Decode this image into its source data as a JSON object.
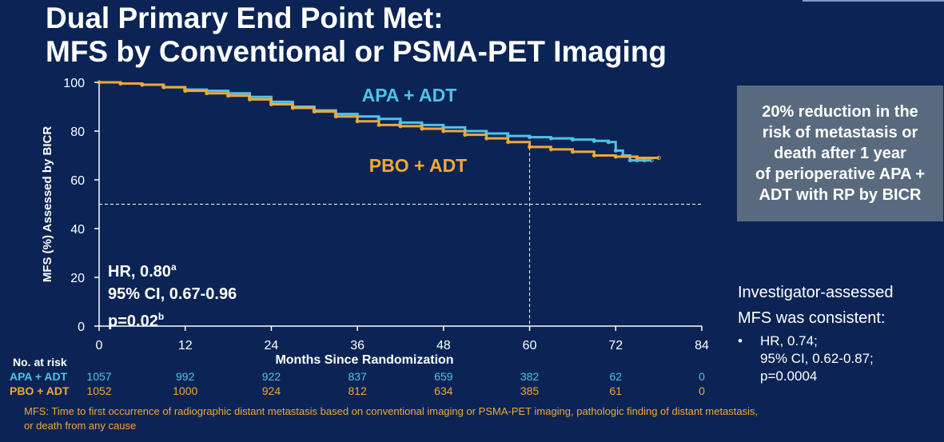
{
  "title_line1": "Dual Primary End Point Met:",
  "title_line2": "MFS by Conventional or PSMA-PET Imaging",
  "colors": {
    "background": "#0b2455",
    "apa": "#4fc3ea",
    "pbo": "#f0a838",
    "callout_bg": "#5a6a7e"
  },
  "chart_data": {
    "type": "line",
    "xlabel": "Months Since Randomization",
    "ylabel": "MFS (%) Assessed by BICR",
    "xlim": [
      0,
      84
    ],
    "ylim": [
      0,
      100
    ],
    "xticks": [
      0,
      12,
      24,
      36,
      48,
      60,
      72,
      84
    ],
    "yticks": [
      0,
      20,
      40,
      60,
      80,
      100
    ],
    "reference_lines": {
      "median_y": 50,
      "vertical_x": 60
    },
    "series": [
      {
        "name": "APA + ADT",
        "x": [
          0,
          3,
          6,
          9,
          12,
          15,
          18,
          21,
          24,
          27,
          30,
          33,
          36,
          39,
          42,
          45,
          48,
          51,
          54,
          57,
          60,
          63,
          66,
          69,
          71,
          72,
          73,
          74,
          75,
          76,
          77
        ],
        "values": [
          100,
          99.5,
          99,
          98,
          97,
          96.5,
          95.5,
          94,
          92,
          90,
          88.5,
          87,
          86,
          85,
          83.5,
          82.5,
          81.5,
          80,
          79,
          78,
          77.5,
          77,
          76.5,
          76,
          75.5,
          72,
          70,
          68,
          68,
          68,
          68
        ]
      },
      {
        "name": "PBO + ADT",
        "x": [
          0,
          3,
          6,
          9,
          12,
          15,
          18,
          21,
          24,
          27,
          30,
          33,
          36,
          39,
          42,
          45,
          48,
          51,
          54,
          57,
          60,
          63,
          66,
          69,
          72,
          75,
          78
        ],
        "values": [
          100,
          99.5,
          99,
          98,
          96.5,
          95.5,
          94.5,
          93,
          91,
          89.5,
          88,
          86,
          84,
          82.5,
          82,
          81,
          80,
          78.5,
          77,
          75.5,
          73.5,
          72.5,
          71.5,
          70,
          69.5,
          69,
          69
        ]
      }
    ],
    "annotations": {
      "apa_label": "APA + ADT",
      "pbo_label": "PBO + ADT"
    }
  },
  "stats": {
    "hr": "HR, 0.80",
    "hr_sup": "a",
    "ci": "95% CI, 0.67-0.96",
    "p": "p=0.02",
    "p_sup": "b"
  },
  "callout": [
    "20% reduction in the",
    "risk of metastasis or",
    "death after 1 year",
    "of perioperative APA +",
    "ADT with RP by BICR"
  ],
  "investigator": {
    "line1": "Investigator-assessed",
    "line2": "MFS was consistent:",
    "bullet": "•",
    "b1": "HR, 0.74;",
    "b2": "95% CI, 0.62-0.87;",
    "b3": "p=0.0004"
  },
  "risk_table": {
    "header": "No. at risk",
    "rows": [
      {
        "label": "APA + ADT",
        "values": [
          "1057",
          "992",
          "922",
          "837",
          "659",
          "382",
          "62",
          "0"
        ]
      },
      {
        "label": "PBO + ADT",
        "values": [
          "1052",
          "1000",
          "924",
          "812",
          "634",
          "385",
          "61",
          "0"
        ]
      }
    ]
  },
  "footnote_line1": "MFS: Time to first occurrence of radiographic distant metastasis based on conventional imaging or PSMA-PET imaging, pathologic finding of distant metastasis,",
  "footnote_line2": "or death from any cause"
}
